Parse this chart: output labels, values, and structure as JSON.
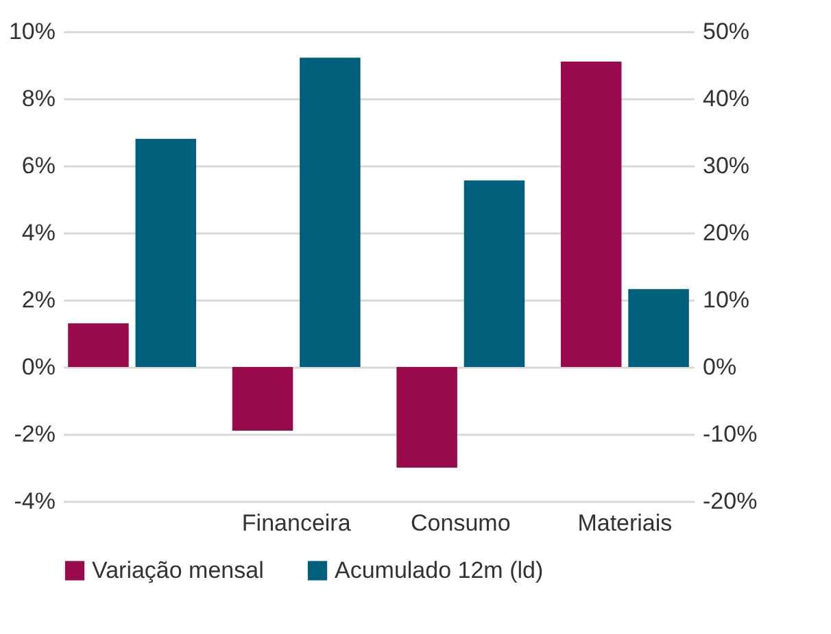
{
  "chart_data": {
    "type": "bar",
    "categories": [
      null,
      "Financeira",
      "Consumo",
      "Materiais"
    ],
    "series": [
      {
        "name": "Variação mensal",
        "color": "#990a4c",
        "values": [
          1.3,
          -1.9,
          -3.0,
          9.1
        ]
      },
      {
        "name": "Acumulado 12m (ld)",
        "color": "#005f7b",
        "axis": "y2",
        "values": [
          34,
          46.1,
          27.8,
          11.6
        ]
      }
    ],
    "ylim": [
      -4,
      10
    ],
    "yticks": [
      {
        "value": -4,
        "label": "-4%"
      },
      {
        "value": -2,
        "label": "-2%"
      },
      {
        "value": 0,
        "label": "0%"
      },
      {
        "value": 2,
        "label": "2%"
      },
      {
        "value": 4,
        "label": "4%"
      },
      {
        "value": 6,
        "label": "6%"
      },
      {
        "value": 8,
        "label": "8%"
      },
      {
        "value": 10,
        "label": "10%"
      }
    ],
    "y2lim": [
      -20,
      50
    ],
    "y2ticks": [
      {
        "value": -20,
        "label": "-20%"
      },
      {
        "value": -10,
        "label": "-10%"
      },
      {
        "value": 0,
        "label": "0%"
      },
      {
        "value": 10,
        "label": "10%"
      },
      {
        "value": 20,
        "label": "20%"
      },
      {
        "value": 30,
        "label": "30%"
      },
      {
        "value": 40,
        "label": "40%"
      },
      {
        "value": 50,
        "label": "50%"
      }
    ],
    "grid": "y",
    "legend": "bottom"
  }
}
